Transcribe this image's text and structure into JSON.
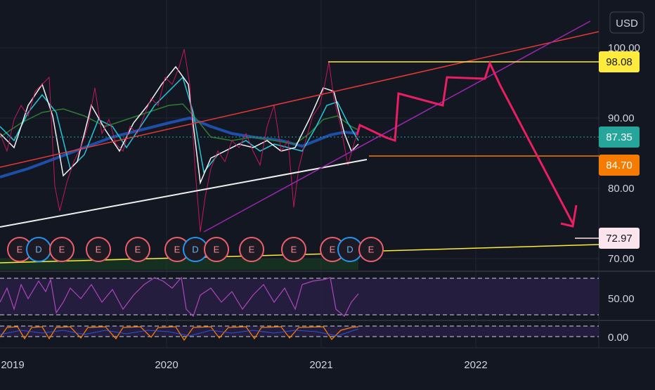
{
  "currency": "USD",
  "price_axis": [
    "100.00",
    "90.00",
    "80.00",
    "70.00"
  ],
  "indicator_axis": [
    "50.00",
    "0.00"
  ],
  "time_axis": [
    "2019",
    "2020",
    "2021",
    "2022"
  ],
  "price_tags": [
    {
      "text": "98.08",
      "color": "#ffeb3b",
      "text_color": "#131722"
    },
    {
      "text": "87.35",
      "color": "#26a69a",
      "text_color": "#ffffff"
    },
    {
      "text": "84.70",
      "color": "#f57c00",
      "text_color": "#ffffff"
    },
    {
      "text": "72.97",
      "color": "#fce4ec",
      "text_color": "#131722"
    }
  ],
  "events": [
    "E",
    "D",
    "E",
    "E",
    "E",
    "E",
    "D",
    "E",
    "E",
    "E",
    "E",
    "D",
    "E"
  ]
}
